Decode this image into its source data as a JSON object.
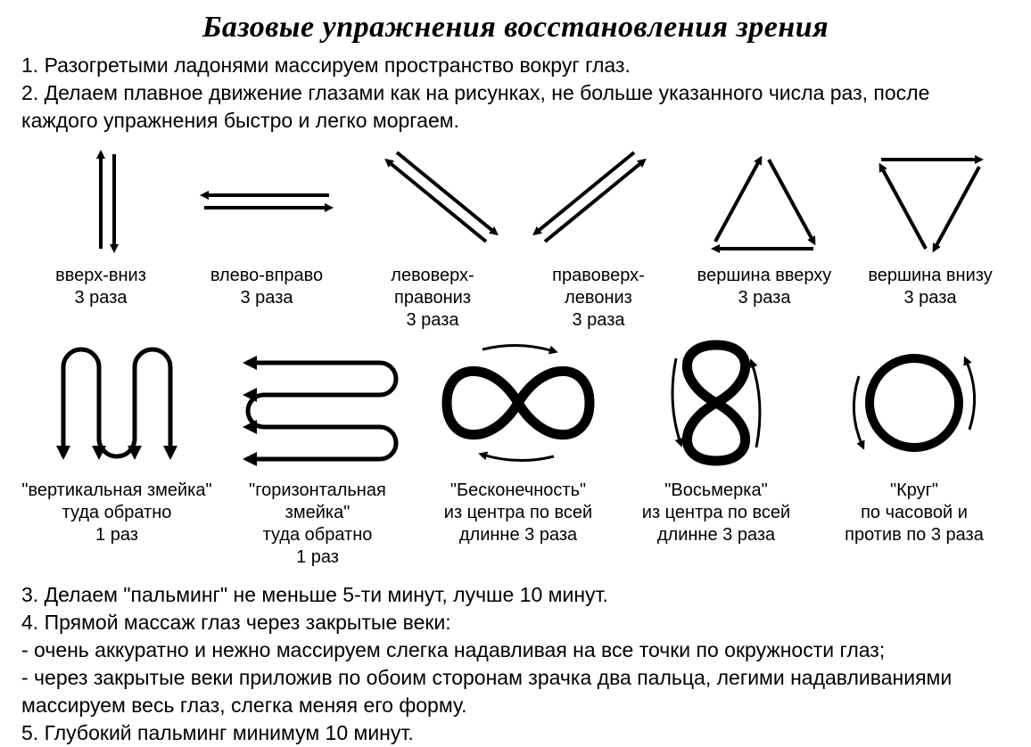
{
  "title": "Базовые упражнения восстановления зрения",
  "instructions": "1. Разогретыми ладонями массируем пространство вокруг глаз.\n2. Делаем плавное движение глазами как на рисунках, не больше указанного числа раз, после каждого упражнения быстро и легко моргаем.",
  "footer": "3. Делаем \"пальминг\" не меньше 5-ти минут, лучше 10 минут.\n4. Прямой массаж глаз через закрытые веки:\n- очень аккуратно и нежно массируем слегка надавливая на все точки по окружности глаз;\n- через закрытые веки приложив по обоим сторонам зрачка два пальца, легими надавливаниями массируем весь глаз, слегка меняя его форму.\n5. Глубокий пальминг минимум 10 минут.",
  "style": {
    "stroke": "#000000",
    "stroke_width_thin": 4,
    "stroke_width_bold": 10,
    "arrow_marker": "triangle",
    "background": "#ffffff",
    "text_color": "#000000"
  },
  "row1": [
    {
      "name": "up-down",
      "label": "вверх-вниз\n3 раза"
    },
    {
      "name": "left-right",
      "label": "влево-вправо\n3 раза"
    },
    {
      "name": "diag-lt-rb",
      "label": "левоверх-правониз\n3 раза"
    },
    {
      "name": "diag-rt-lb",
      "label": "правоверх-левониз\n3 раза"
    },
    {
      "name": "triangle-up",
      "label": "вершина вверху\n3 раза"
    },
    {
      "name": "triangle-down",
      "label": "вершина внизу\n3 раза"
    }
  ],
  "row2": [
    {
      "name": "v-snake",
      "label": "\"вертикальная змейка\"\nтуда обратно\n1 раз"
    },
    {
      "name": "h-snake",
      "label": "\"горизонтальная змейка\"\nтуда обратно\n1 раз"
    },
    {
      "name": "infinity",
      "label": "\"Бесконечность\"\nиз центра по всей\nдлинне 3 раза"
    },
    {
      "name": "eight",
      "label": "\"Восьмерка\"\nиз центра по всей\nдлинне 3 раза"
    },
    {
      "name": "circle",
      "label": "\"Круг\"\nпо часовой и\nпротив по 3 раза"
    }
  ]
}
